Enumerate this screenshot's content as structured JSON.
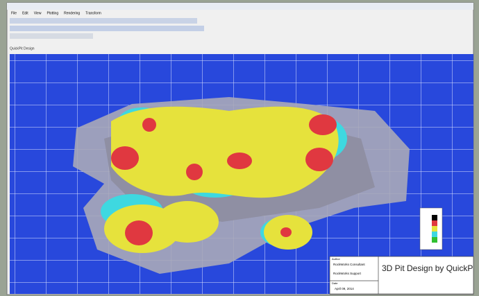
{
  "window": {
    "menu": [
      "File",
      "Edit",
      "View",
      "Plotting",
      "Rendering",
      "Transform"
    ],
    "tab": "QuickPit Design"
  },
  "title_block": {
    "author_label": "Author",
    "author_1": "RockWorks Consultant",
    "author_2": "RockWorks Support",
    "date_label": "Date",
    "date": "April 09, 2014",
    "title": "3D Pit Design by QuickP"
  }
}
